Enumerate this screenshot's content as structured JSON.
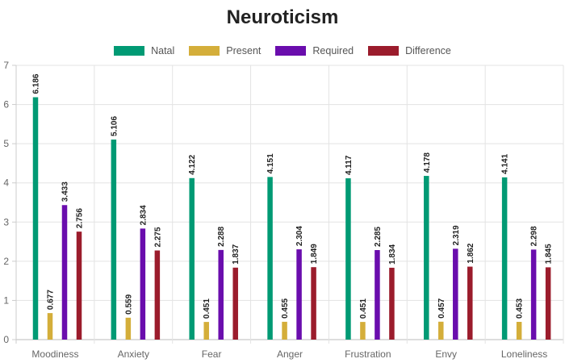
{
  "chart_data": {
    "type": "bar",
    "title": "Neuroticism",
    "categories": [
      "Moodiness",
      "Anxiety",
      "Fear",
      "Anger",
      "Frustration",
      "Envy",
      "Loneliness"
    ],
    "series": [
      {
        "name": "Natal",
        "color": "#009a74",
        "values": [
          6.186,
          5.106,
          4.122,
          4.151,
          4.117,
          4.178,
          4.141
        ]
      },
      {
        "name": "Present",
        "color": "#d4ae3a",
        "values": [
          0.677,
          0.559,
          0.451,
          0.455,
          0.451,
          0.457,
          0.453
        ]
      },
      {
        "name": "Required",
        "color": "#6a0dad",
        "values": [
          3.433,
          2.834,
          2.288,
          2.304,
          2.285,
          2.319,
          2.298
        ]
      },
      {
        "name": "Difference",
        "color": "#9b1c2c",
        "values": [
          2.756,
          2.275,
          1.837,
          1.849,
          1.834,
          1.862,
          1.845
        ]
      }
    ],
    "ylim": [
      0,
      7
    ],
    "yticks": [
      0,
      1,
      2,
      3,
      4,
      5,
      6,
      7
    ],
    "grid": true,
    "legend_position": "top"
  }
}
